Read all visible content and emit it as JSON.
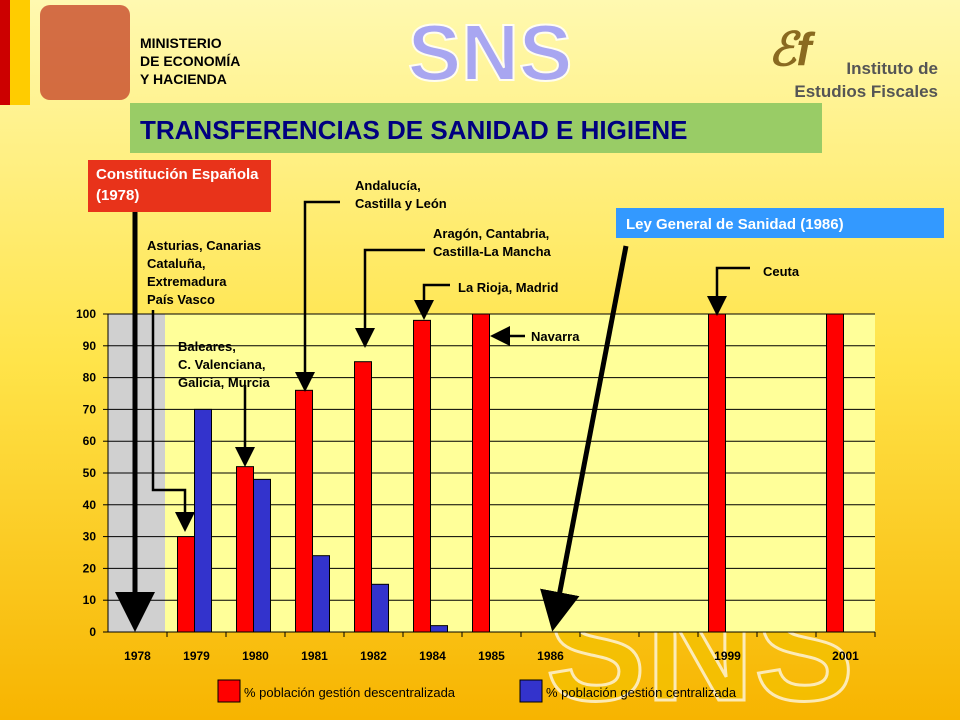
{
  "header": {
    "ministry": [
      "MINISTERIO",
      "DE ECONOMÍA",
      "Y HACIENDA"
    ],
    "watermark": "SNS",
    "institute": [
      "Instituto de",
      "Estudios Fiscales"
    ]
  },
  "chart_data": {
    "type": "bar",
    "title": "TRANSFERENCIAS DE SANIDAD E HIGIENE",
    "categories": [
      "1978",
      "1979",
      "1980",
      "1981",
      "1982",
      "1984",
      "1985",
      "1986",
      null,
      null,
      "1999",
      null,
      "2001"
    ],
    "series": [
      {
        "name": "% población gestión descentralizada",
        "color": "#ff0000",
        "values": [
          null,
          30,
          52,
          76,
          85,
          98,
          100,
          null,
          null,
          null,
          100,
          null,
          100
        ]
      },
      {
        "name": "% población gestión centralizada",
        "color": "#3333cc",
        "values": [
          null,
          70,
          48,
          24,
          15,
          2,
          null,
          null,
          null,
          null,
          null,
          null,
          null
        ]
      }
    ],
    "ylim": [
      0,
      100
    ],
    "yticks": [
      0,
      10,
      20,
      30,
      40,
      50,
      60,
      70,
      80,
      90,
      100
    ],
    "grid": true,
    "events": [
      "Constitución Española (1978)",
      "Ley General de Sanidad (1986)"
    ],
    "annotations": [
      {
        "lines": [
          "Asturias, Canarias",
          "Cataluña,",
          "Extremadura",
          "País Vasco"
        ]
      },
      {
        "lines": [
          "Baleares,",
          "C. Valenciana,",
          "Galicia, Murcia"
        ]
      },
      {
        "lines": [
          "Andalucía,",
          "Castilla y León"
        ]
      },
      {
        "lines": [
          "Aragón, Cantabria,",
          "Castilla-La Mancha"
        ]
      },
      {
        "lines": [
          "La Rioja, Madrid"
        ]
      },
      {
        "lines": [
          "Navarra"
        ]
      },
      {
        "lines": [
          "Ceuta"
        ]
      }
    ]
  }
}
